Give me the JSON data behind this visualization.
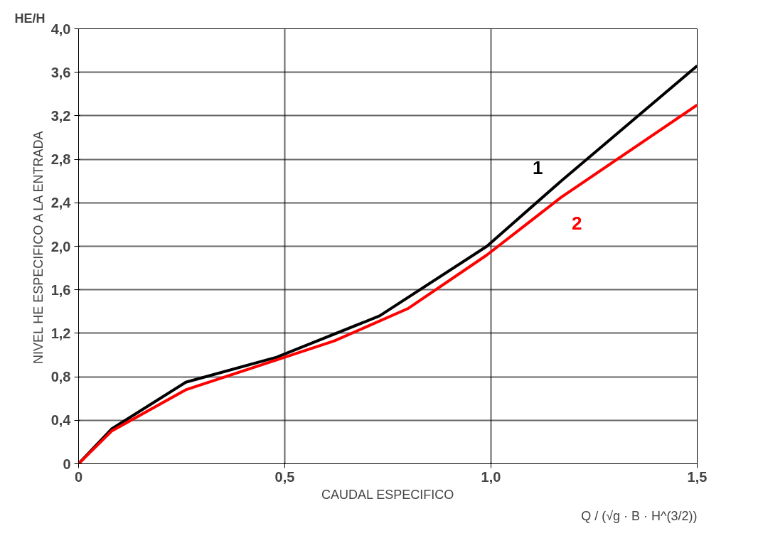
{
  "chart_data": {
    "type": "line",
    "xlabel": "CAUDAL ESPECIFICO",
    "ylabel": "NIVEL HE ESPECIFICO A LA ENTRADA",
    "annotations": [
      "HE/H",
      "Q / (√g · B · H^(3/2))"
    ],
    "xlim": [
      0,
      1.5
    ],
    "ylim": [
      0,
      4.0
    ],
    "xticks": [
      {
        "value": 0,
        "label": "0"
      },
      {
        "value": 0.5,
        "label": "0,5"
      },
      {
        "value": 1.0,
        "label": "1,0"
      },
      {
        "value": 1.5,
        "label": "1,5"
      }
    ],
    "yticks": [
      {
        "value": 0,
        "label": "0"
      },
      {
        "value": 0.4,
        "label": "0,4"
      },
      {
        "value": 0.8,
        "label": "0,8"
      },
      {
        "value": 1.2,
        "label": "1,2"
      },
      {
        "value": 1.6,
        "label": "1,6"
      },
      {
        "value": 2.0,
        "label": "2,0"
      },
      {
        "value": 2.4,
        "label": "2,4"
      },
      {
        "value": 2.8,
        "label": "2,8"
      },
      {
        "value": 3.2,
        "label": "3,2"
      },
      {
        "value": 3.6,
        "label": "3,6"
      },
      {
        "value": 4.0,
        "label": "4,0"
      }
    ],
    "grid": true,
    "marker": "none",
    "line_style": "solid",
    "series": [
      {
        "name": "1",
        "color": "#000000",
        "x": [
          0,
          0.08,
          0.26,
          0.48,
          0.73,
          0.99,
          1.17,
          1.5
        ],
        "values": [
          0,
          0.32,
          0.75,
          0.98,
          1.36,
          2.0,
          2.6,
          3.66
        ]
      },
      {
        "name": "2",
        "color": "#ff0000",
        "x": [
          0,
          0.08,
          0.26,
          0.62,
          0.8,
          0.99,
          1.17,
          1.5
        ],
        "values": [
          0,
          0.3,
          0.68,
          1.13,
          1.43,
          1.92,
          2.45,
          3.3
        ]
      }
    ]
  }
}
